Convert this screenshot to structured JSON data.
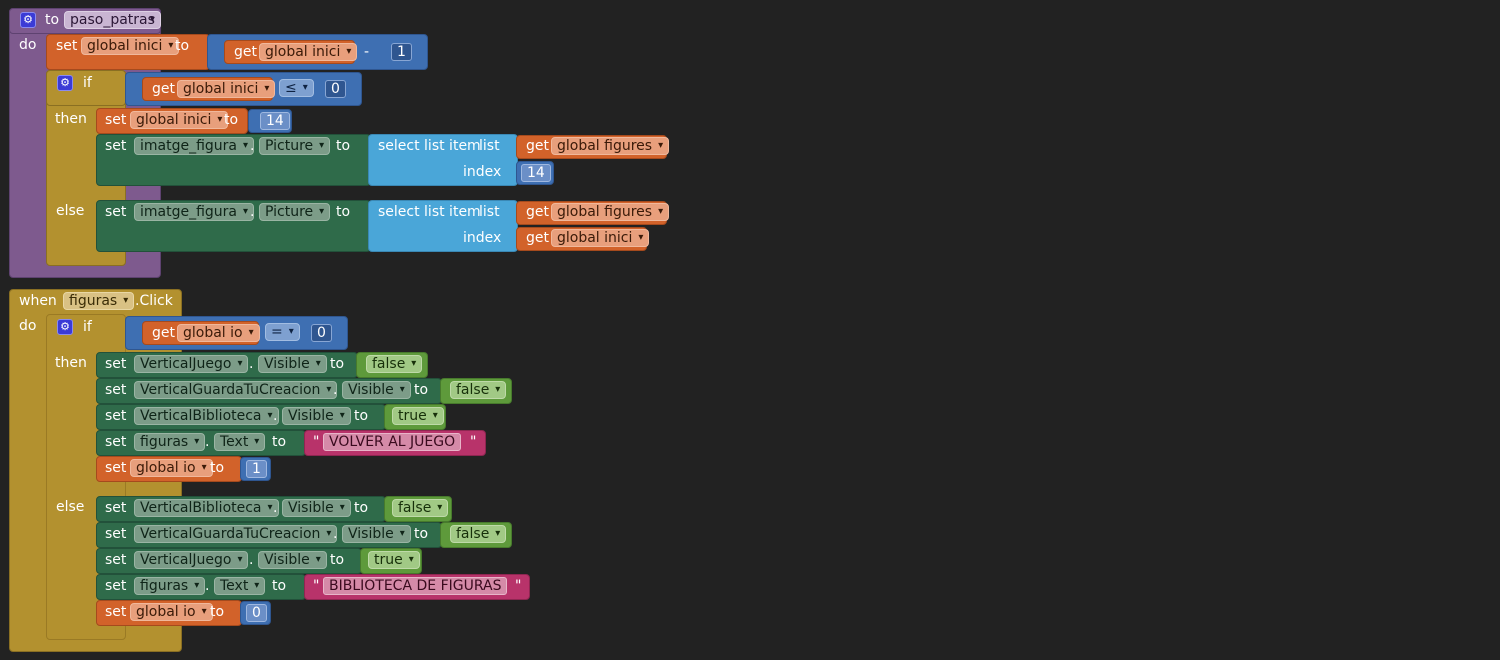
{
  "proc": {
    "to": "to",
    "name": "paso_patras",
    "do": "do",
    "set": "set",
    "get": "get",
    "to_kw": "to",
    "if": "if",
    "then": "then",
    "else": "else",
    "var_inici": "global inici",
    "var_figures": "global figures",
    "minus": "-",
    "one": "1",
    "leq": "≤",
    "zero": "0",
    "fourteen": "14",
    "fourteen_idx": "14",
    "component": "imatge_figura",
    "dot": ".",
    "property": "Picture",
    "select": "select list item",
    "list": "list",
    "index": "index"
  },
  "event": {
    "when": "when",
    "component": "figuras",
    "click": ".Click",
    "do": "do",
    "if": "if",
    "then": "then",
    "else": "else",
    "get": "get",
    "set": "set",
    "to_kw": "to",
    "dot": ".",
    "var_io": "global io",
    "eq": "=",
    "zero": "0",
    "one": "1",
    "visible": "Visible",
    "text": "Text",
    "c_juego": "VerticalJuego",
    "c_guarda": "VerticalGuardaTuCreacion",
    "c_biblio": "VerticalBiblioteca",
    "c_figuras": "figuras",
    "false": "false",
    "true": "true",
    "quote": "\"",
    "str_volver": "VOLVER AL JUEGO",
    "str_biblio": "BIBLIOTECA DE FIGURAS"
  },
  "colors": {
    "procedure": "#7e5a8e",
    "control": "#b3912f",
    "variable": "#d2622a",
    "math": "#3e6fb2",
    "component": "#2f6b4a",
    "logic": "#5e9a3b",
    "list": "#4aa6d8",
    "text": "#b8336a",
    "workspace": "#222222"
  }
}
